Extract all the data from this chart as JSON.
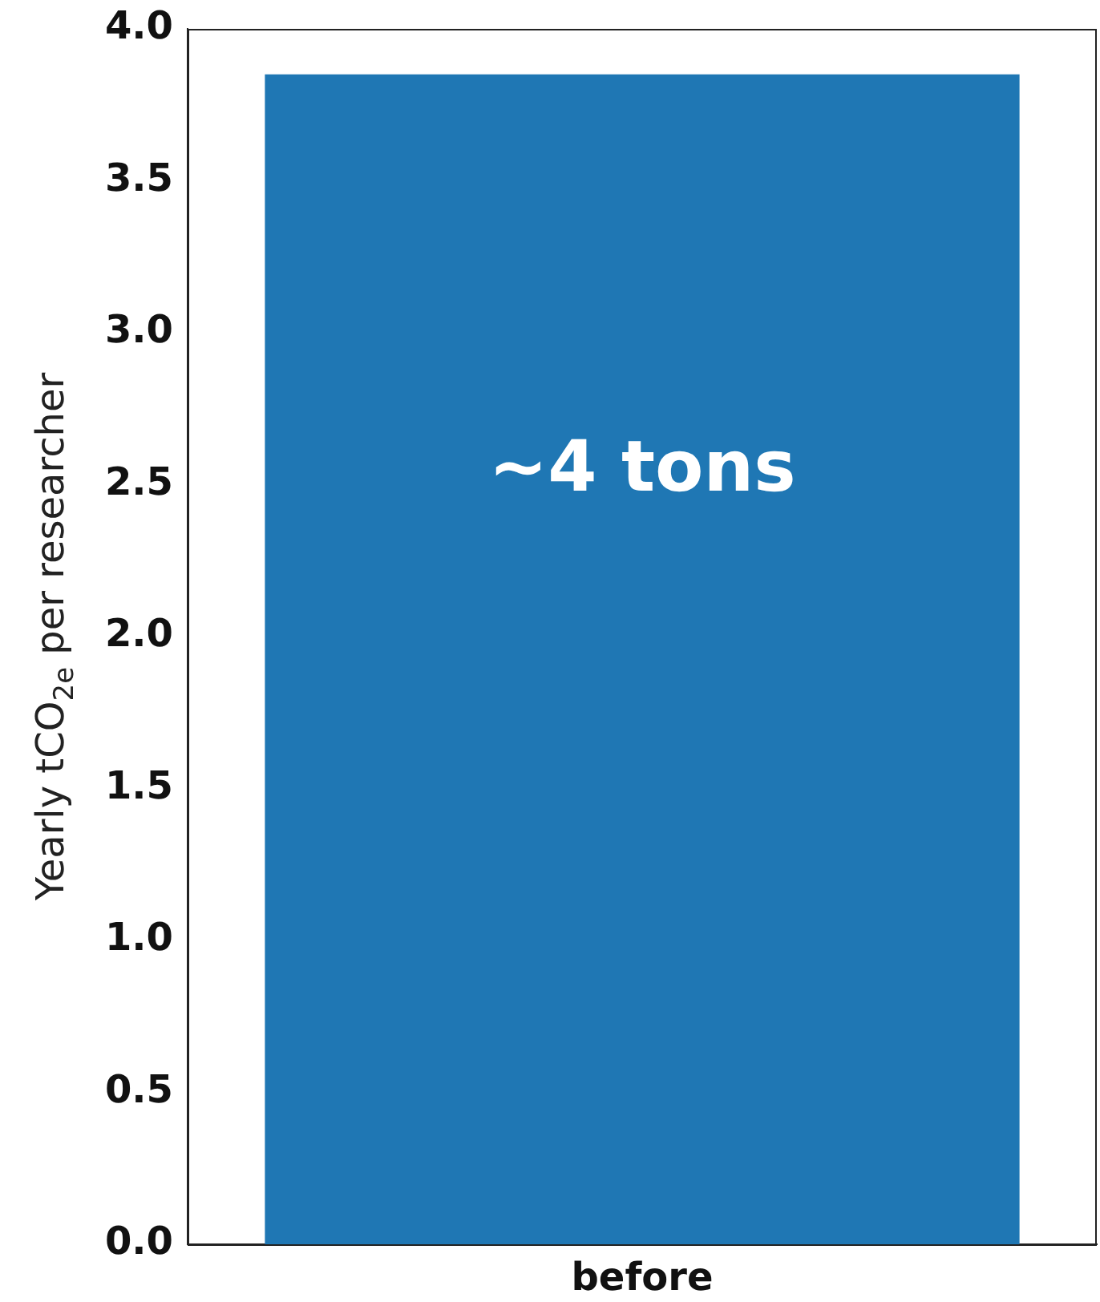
{
  "chart_data": {
    "type": "bar",
    "categories": [
      "before"
    ],
    "values": [
      3.85
    ],
    "color": "#1f77b4",
    "ylabel": "Yearly tCO$_{2e}$ per researcher",
    "ylim": [
      0,
      4
    ],
    "yticks": [
      {
        "value": 0,
        "label": "0.0"
      },
      0.5,
      {
        "value": 1,
        "label": "1.0"
      },
      1.5,
      {
        "value": 2,
        "label": "2.0"
      },
      2.5,
      {
        "value": 3,
        "label": "3.0"
      },
      3.5,
      {
        "value": 4,
        "label": "4.0"
      }
    ],
    "grid": false,
    "legend": false,
    "annotations": [
      "~4 tons"
    ]
  }
}
